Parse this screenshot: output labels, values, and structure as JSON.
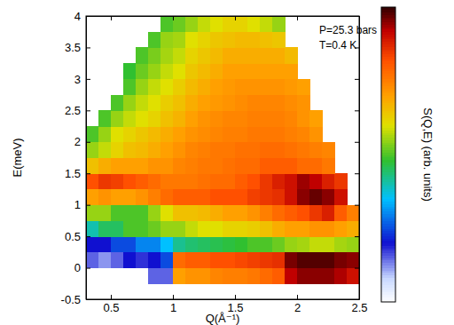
{
  "chart_data": {
    "type": "heatmap",
    "x_label": "Q(Å⁻¹)",
    "y_label": "E(meV)",
    "annotations": [
      "P=25.3 bars",
      "T=0.4 K"
    ],
    "x": [
      0.35,
      0.45,
      0.55,
      0.65,
      0.75,
      0.85,
      0.95,
      1.05,
      1.15,
      1.25,
      1.35,
      1.45,
      1.55,
      1.65,
      1.75,
      1.85,
      1.95,
      2.05,
      2.15,
      2.25,
      2.35,
      2.45
    ],
    "y": [
      -0.375,
      -0.125,
      0.125,
      0.375,
      0.625,
      0.875,
      1.125,
      1.375,
      1.625,
      1.875,
      2.125,
      2.375,
      2.625,
      2.875,
      3.125,
      3.375,
      3.625,
      3.875
    ],
    "z": [
      [
        null,
        null,
        null,
        null,
        null,
        null,
        null,
        null,
        null,
        null,
        null,
        null,
        null,
        null,
        null,
        null,
        null,
        null,
        null,
        null,
        null,
        null
      ],
      [
        null,
        null,
        null,
        null,
        null,
        0.15,
        0.15,
        0.7,
        0.72,
        0.72,
        0.74,
        0.75,
        0.75,
        0.76,
        0.78,
        0.8,
        0.92,
        0.95,
        0.95,
        0.95,
        0.93,
        0.9
      ],
      [
        0.15,
        0.12,
        0.15,
        0.2,
        0.18,
        0.2,
        0.25,
        0.78,
        0.8,
        0.8,
        0.82,
        0.82,
        0.83,
        0.84,
        0.85,
        0.86,
        0.96,
        0.98,
        0.98,
        0.98,
        0.96,
        0.95
      ],
      [
        0.2,
        0.2,
        0.25,
        0.25,
        0.3,
        0.3,
        0.35,
        0.42,
        0.44,
        0.45,
        0.46,
        0.47,
        0.48,
        0.5,
        0.5,
        0.52,
        0.55,
        0.56,
        0.58,
        0.58,
        0.56,
        0.55
      ],
      [
        0.4,
        0.45,
        0.45,
        0.5,
        0.5,
        0.52,
        0.55,
        0.55,
        0.58,
        0.6,
        0.6,
        0.62,
        0.62,
        0.63,
        0.65,
        0.68,
        0.7,
        0.7,
        0.72,
        0.72,
        0.7,
        0.68
      ],
      [
        0.55,
        0.55,
        0.5,
        0.5,
        0.5,
        0.55,
        0.6,
        0.65,
        0.65,
        0.66,
        0.68,
        0.7,
        0.7,
        0.72,
        0.75,
        0.78,
        0.8,
        0.82,
        0.85,
        0.88,
        0.8,
        0.75
      ],
      [
        0.7,
        0.72,
        0.7,
        0.7,
        0.72,
        0.75,
        0.78,
        0.8,
        0.8,
        0.8,
        0.82,
        0.82,
        0.82,
        0.84,
        0.85,
        0.86,
        0.9,
        0.95,
        0.97,
        0.95,
        0.9,
        null
      ],
      [
        0.82,
        0.85,
        0.84,
        0.82,
        0.8,
        0.78,
        0.76,
        0.76,
        0.76,
        0.77,
        0.78,
        0.78,
        0.8,
        0.82,
        0.85,
        0.88,
        0.9,
        0.94,
        0.92,
        0.88,
        0.85,
        null
      ],
      [
        0.65,
        0.68,
        0.7,
        0.7,
        0.7,
        0.72,
        0.72,
        0.74,
        0.75,
        0.76,
        0.76,
        0.77,
        0.78,
        0.78,
        0.8,
        0.8,
        0.8,
        0.78,
        0.78,
        0.76,
        null,
        null
      ],
      [
        0.55,
        0.58,
        0.62,
        0.65,
        0.66,
        0.68,
        0.7,
        0.72,
        0.74,
        0.75,
        0.76,
        0.76,
        0.77,
        0.77,
        0.78,
        0.78,
        0.77,
        0.76,
        0.75,
        0.74,
        null,
        null
      ],
      [
        0.5,
        0.55,
        0.6,
        0.62,
        0.64,
        0.66,
        0.68,
        0.7,
        0.72,
        0.73,
        0.74,
        0.75,
        0.75,
        0.76,
        0.76,
        0.76,
        0.75,
        0.74,
        0.72,
        null,
        null,
        null
      ],
      [
        null,
        0.5,
        0.55,
        0.58,
        0.6,
        0.62,
        0.65,
        0.67,
        0.7,
        0.72,
        0.73,
        0.74,
        0.74,
        0.75,
        0.75,
        0.75,
        0.74,
        0.72,
        0.7,
        null,
        null,
        null
      ],
      [
        null,
        null,
        0.5,
        0.55,
        0.58,
        0.6,
        0.63,
        0.65,
        0.68,
        0.7,
        0.71,
        0.72,
        0.73,
        0.74,
        0.74,
        0.74,
        0.73,
        0.72,
        null,
        null,
        null,
        null
      ],
      [
        null,
        null,
        null,
        0.5,
        0.55,
        0.58,
        0.6,
        0.63,
        0.66,
        0.68,
        0.7,
        0.71,
        0.72,
        0.72,
        0.72,
        0.72,
        0.71,
        0.7,
        null,
        null,
        null,
        null
      ],
      [
        null,
        null,
        null,
        0.48,
        0.52,
        0.55,
        0.58,
        0.6,
        0.64,
        0.66,
        0.68,
        0.7,
        0.7,
        0.7,
        0.7,
        0.7,
        0.7,
        null,
        null,
        null,
        null,
        null
      ],
      [
        null,
        null,
        null,
        null,
        0.5,
        0.53,
        0.56,
        0.58,
        0.62,
        0.64,
        0.66,
        0.68,
        0.68,
        0.68,
        0.68,
        0.68,
        0.66,
        null,
        null,
        null,
        null,
        null
      ],
      [
        null,
        null,
        null,
        null,
        null,
        0.5,
        0.55,
        0.56,
        0.6,
        0.62,
        0.64,
        0.65,
        0.66,
        0.66,
        0.65,
        0.64,
        null,
        null,
        null,
        null,
        null,
        null
      ],
      [
        null,
        null,
        null,
        null,
        null,
        null,
        0.5,
        0.52,
        0.55,
        0.58,
        0.6,
        0.62,
        0.62,
        0.6,
        0.58,
        0.55,
        null,
        null,
        null,
        null,
        null,
        null
      ]
    ],
    "xlim": [
      0.3,
      2.5
    ],
    "ylim": [
      -0.5,
      4
    ],
    "xticks": [
      0.5,
      1,
      1.5,
      2,
      2.5
    ],
    "yticks": [
      -0.5,
      0,
      0.5,
      1,
      1.5,
      2,
      2.5,
      3,
      3.5,
      4
    ],
    "colorbar": {
      "label": "S(Q,E) (arb. units)",
      "range": [
        0,
        1
      ]
    }
  }
}
